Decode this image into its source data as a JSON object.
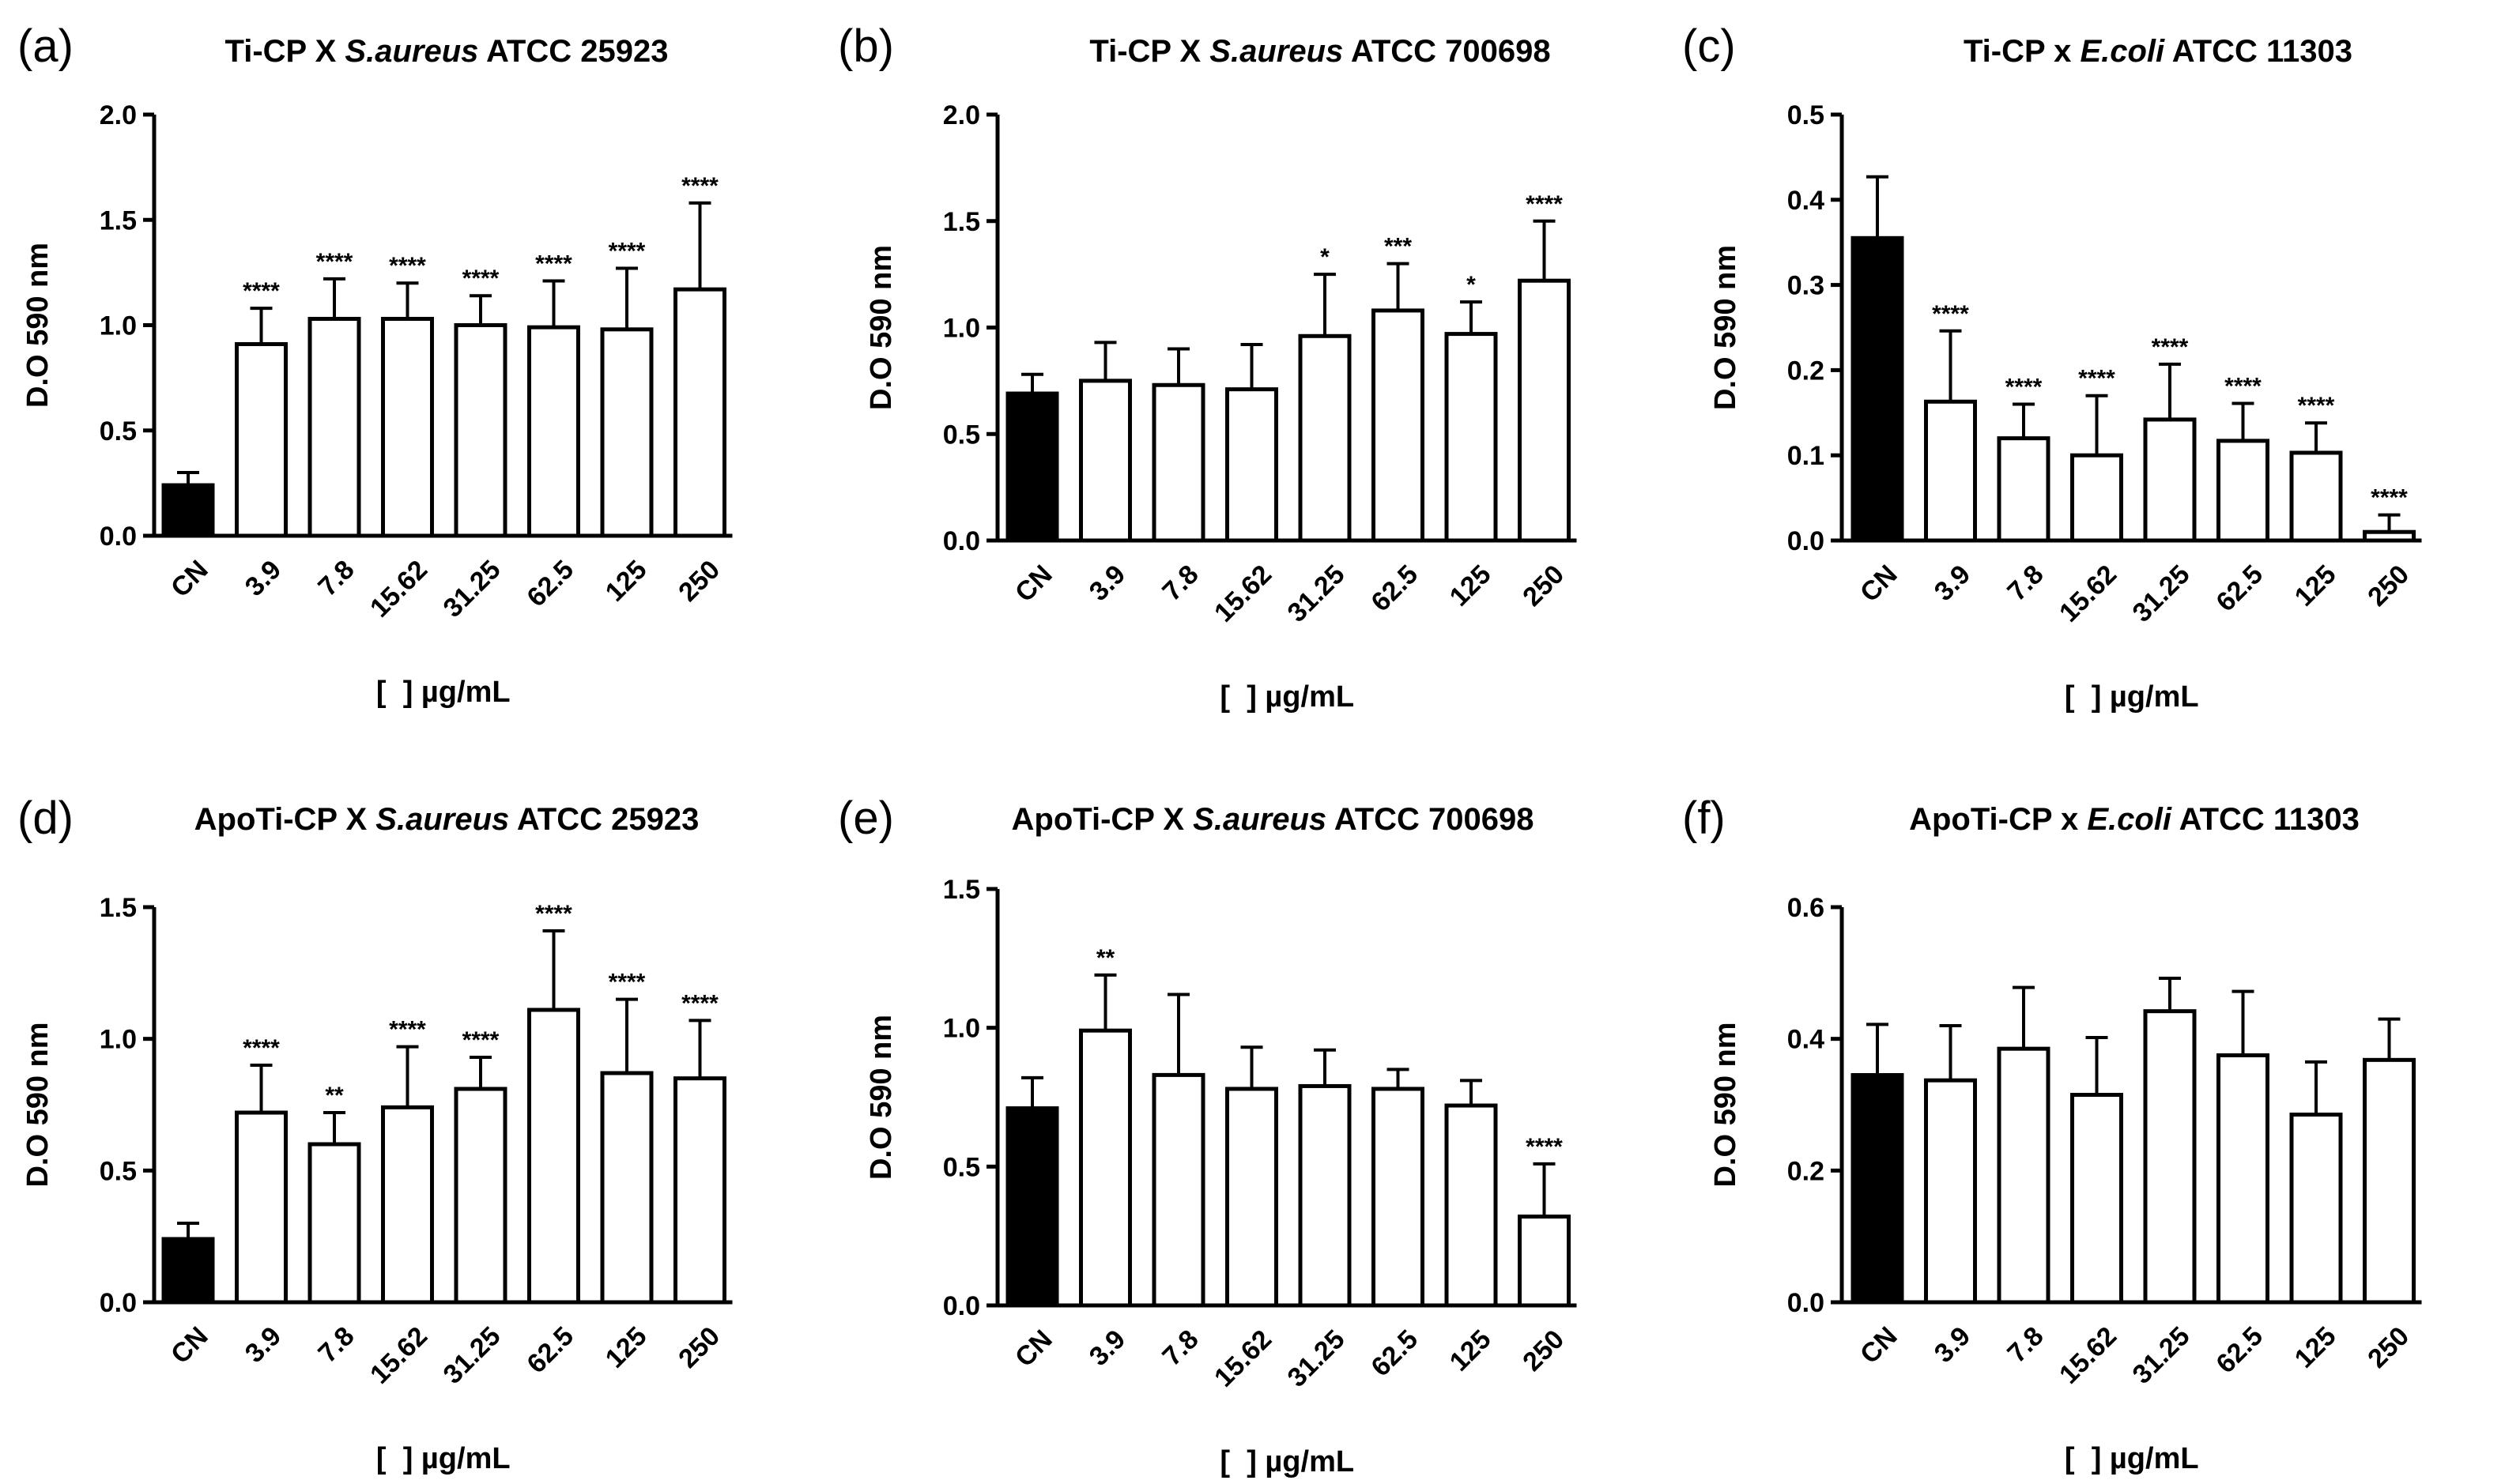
{
  "colors": {
    "control_fill": "#000000",
    "bar_fill": "#ffffff",
    "stroke": "#000000"
  },
  "chart_data": [
    {
      "type": "bar",
      "letter": "(a)",
      "title_parts": [
        {
          "text": "Ti-CP X "
        },
        {
          "text": "S.aureus",
          "italic": true
        },
        {
          "text": " ATCC 25923"
        }
      ],
      "ylabel": "D.O 590 nm",
      "xlabel": "[  ] µg/mL",
      "ylim": [
        0,
        2.0
      ],
      "yticks": [
        "0.0",
        "0.5",
        "1.0",
        "1.5",
        "2.0"
      ],
      "categories": [
        "CN",
        "3.9",
        "7.8",
        "15.62",
        "31.25",
        "62.5",
        "125",
        "250"
      ],
      "values": [
        0.24,
        0.91,
        1.03,
        1.03,
        1.0,
        0.99,
        0.98,
        1.17
      ],
      "errors": [
        0.06,
        0.17,
        0.19,
        0.17,
        0.14,
        0.22,
        0.29,
        0.41
      ],
      "significance": [
        "",
        "****",
        "****",
        "****",
        "****",
        "****",
        "****",
        "****"
      ]
    },
    {
      "type": "bar",
      "letter": "(b)",
      "title_parts": [
        {
          "text": "Ti-CP X "
        },
        {
          "text": "S.aureus",
          "italic": true
        },
        {
          "text": " ATCC 700698"
        }
      ],
      "ylabel": "D.O 590 nm",
      "xlabel": "[  ] µg/mL",
      "ylim": [
        0,
        2.0
      ],
      "yticks": [
        "0.0",
        "0.5",
        "1.0",
        "1.5",
        "2.0"
      ],
      "categories": [
        "CN",
        "3.9",
        "7.8",
        "15.62",
        "31.25",
        "62.5",
        "125",
        "250"
      ],
      "values": [
        0.69,
        0.75,
        0.73,
        0.71,
        0.96,
        1.08,
        0.97,
        1.22
      ],
      "errors": [
        0.09,
        0.18,
        0.17,
        0.21,
        0.29,
        0.22,
        0.15,
        0.28
      ],
      "significance": [
        "",
        "",
        "",
        "",
        "*",
        "***",
        "*",
        "****"
      ]
    },
    {
      "type": "bar",
      "letter": "(c)",
      "title_parts": [
        {
          "text": "Ti-CP x "
        },
        {
          "text": "E.coli",
          "italic": true
        },
        {
          "text": " ATCC 11303"
        }
      ],
      "ylabel": "D.O 590 nm",
      "xlabel": "[  ] µg/mL",
      "ylim": [
        0,
        0.5
      ],
      "yticks": [
        "0.0",
        "0.1",
        "0.2",
        "0.3",
        "0.4",
        "0.5"
      ],
      "categories": [
        "CN",
        "3.9",
        "7.8",
        "15.62",
        "31.25",
        "62.5",
        "125",
        "250"
      ],
      "values": [
        0.355,
        0.163,
        0.12,
        0.1,
        0.142,
        0.117,
        0.103,
        0.01
      ],
      "errors": [
        0.072,
        0.083,
        0.04,
        0.07,
        0.065,
        0.044,
        0.035,
        0.02
      ],
      "significance": [
        "",
        "****",
        "****",
        "****",
        "****",
        "****",
        "****",
        "****"
      ]
    },
    {
      "type": "bar",
      "letter": "(d)",
      "title_parts": [
        {
          "text": "ApoTi-CP X "
        },
        {
          "text": "S.aureus",
          "italic": true
        },
        {
          "text": " ATCC 25923"
        }
      ],
      "ylabel": "D.O 590 nm",
      "xlabel": "[  ] µg/mL",
      "ylim": [
        0,
        1.5
      ],
      "yticks": [
        "0.0",
        "0.5",
        "1.0",
        "1.5"
      ],
      "categories": [
        "CN",
        "3.9",
        "7.8",
        "15.62",
        "31.25",
        "62.5",
        "125",
        "250"
      ],
      "values": [
        0.24,
        0.72,
        0.6,
        0.74,
        0.81,
        1.11,
        0.87,
        0.85
      ],
      "errors": [
        0.06,
        0.18,
        0.12,
        0.23,
        0.12,
        0.3,
        0.28,
        0.22
      ],
      "significance": [
        "",
        "****",
        "**",
        "****",
        "****",
        "****",
        "****",
        "****"
      ]
    },
    {
      "type": "bar",
      "letter": "(e)",
      "title_parts": [
        {
          "text": "ApoTi-CP X "
        },
        {
          "text": "S.aureus",
          "italic": true
        },
        {
          "text": " ATCC 700698"
        }
      ],
      "ylabel": "D.O 590 nm",
      "xlabel": "[  ] µg/mL",
      "ylim": [
        0,
        1.5
      ],
      "yticks": [
        "0.0",
        "0.5",
        "1.0",
        "1.5"
      ],
      "categories": [
        "CN",
        "3.9",
        "7.8",
        "15.62",
        "31.25",
        "62.5",
        "125",
        "250"
      ],
      "values": [
        0.71,
        0.99,
        0.83,
        0.78,
        0.79,
        0.78,
        0.72,
        0.32
      ],
      "errors": [
        0.11,
        0.2,
        0.29,
        0.15,
        0.13,
        0.07,
        0.09,
        0.19
      ],
      "significance": [
        "",
        "**",
        "",
        "",
        "",
        "",
        "",
        "****"
      ]
    },
    {
      "type": "bar",
      "letter": "(f)",
      "title_parts": [
        {
          "text": "ApoTi-CP x "
        },
        {
          "text": "E.coli",
          "italic": true
        },
        {
          "text": " ATCC 11303"
        }
      ],
      "ylabel": "D.O 590 nm",
      "xlabel": "[  ] µg/mL",
      "ylim": [
        0,
        0.6
      ],
      "yticks": [
        "0.0",
        "0.2",
        "0.4",
        "0.6"
      ],
      "categories": [
        "CN",
        "3.9",
        "7.8",
        "15.62",
        "31.25",
        "62.5",
        "125",
        "250"
      ],
      "values": [
        0.345,
        0.337,
        0.385,
        0.315,
        0.442,
        0.375,
        0.285,
        0.368
      ],
      "errors": [
        0.077,
        0.083,
        0.093,
        0.087,
        0.05,
        0.097,
        0.08,
        0.062
      ],
      "significance": [
        "",
        "",
        "",
        "",
        "",
        "",
        "",
        ""
      ]
    }
  ]
}
